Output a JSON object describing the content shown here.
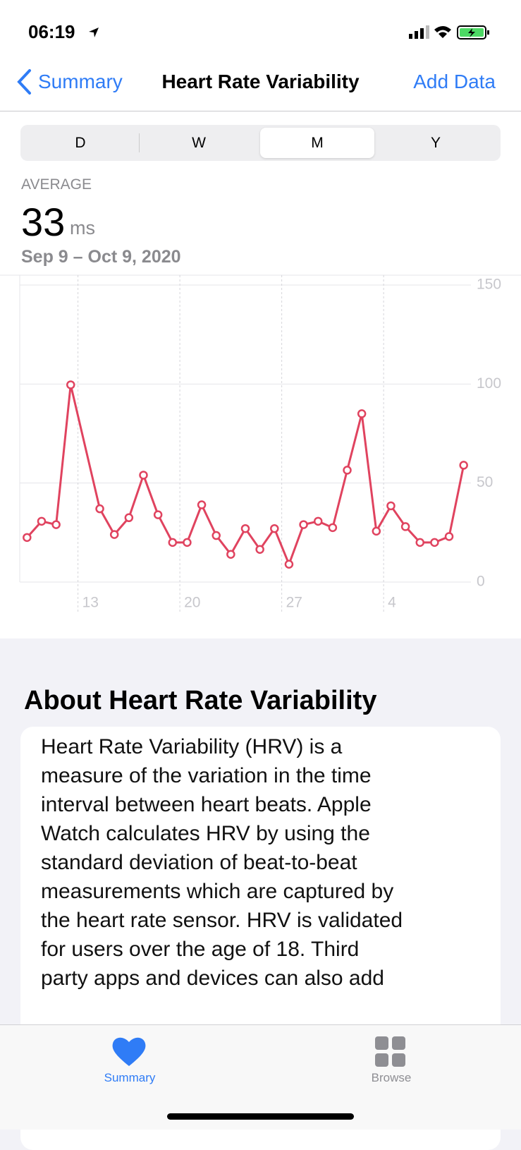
{
  "status_bar": {
    "time": "06:19"
  },
  "nav": {
    "back": "Summary",
    "title": "Heart Rate Variability",
    "action": "Add Data"
  },
  "segments": {
    "items": [
      "D",
      "W",
      "M",
      "Y"
    ],
    "selected": 2
  },
  "summary": {
    "label": "AVERAGE",
    "value": 33,
    "unit": "ms",
    "range": "Sep 9 – Oct 9, 2020"
  },
  "chart_data": {
    "type": "line",
    "categories": [
      null,
      null,
      null,
      null,
      "13",
      null,
      null,
      null,
      null,
      null,
      null,
      "20",
      null,
      null,
      null,
      null,
      null,
      null,
      "27",
      null,
      null,
      null,
      null,
      null,
      null,
      "4",
      null,
      null,
      null,
      null,
      null
    ],
    "series": [
      {
        "color": "#e0435f",
        "values": [
          22.5,
          30.7,
          29,
          99.6,
          null,
          37,
          24,
          32.5,
          54,
          34,
          20,
          20,
          39,
          23.5,
          14,
          27,
          16.5,
          27,
          9,
          29,
          30.7,
          27.5,
          56.5,
          85,
          25.7,
          38.5,
          28,
          20,
          20,
          23,
          59
        ]
      }
    ],
    "span_gaps": true,
    "ylim": [
      0,
      150
    ],
    "yticks": [
      0,
      50,
      100,
      150
    ],
    "grid": true
  },
  "about": {
    "title": "About Heart Rate Variability",
    "lines": [
      "Heart Rate Variability (HRV) is a",
      "measure of the variation in the time",
      "interval between heart beats. Apple",
      "Watch calculates HRV by using the",
      "standard deviation of beat-to-beat",
      "measurements which are captured by",
      "the heart rate sensor. HRV is validated",
      "for users over the age of 18. Third",
      "party apps and devices can also add"
    ]
  },
  "tab_bar": {
    "items": [
      "Summary",
      "Browse"
    ],
    "selected": 0
  }
}
